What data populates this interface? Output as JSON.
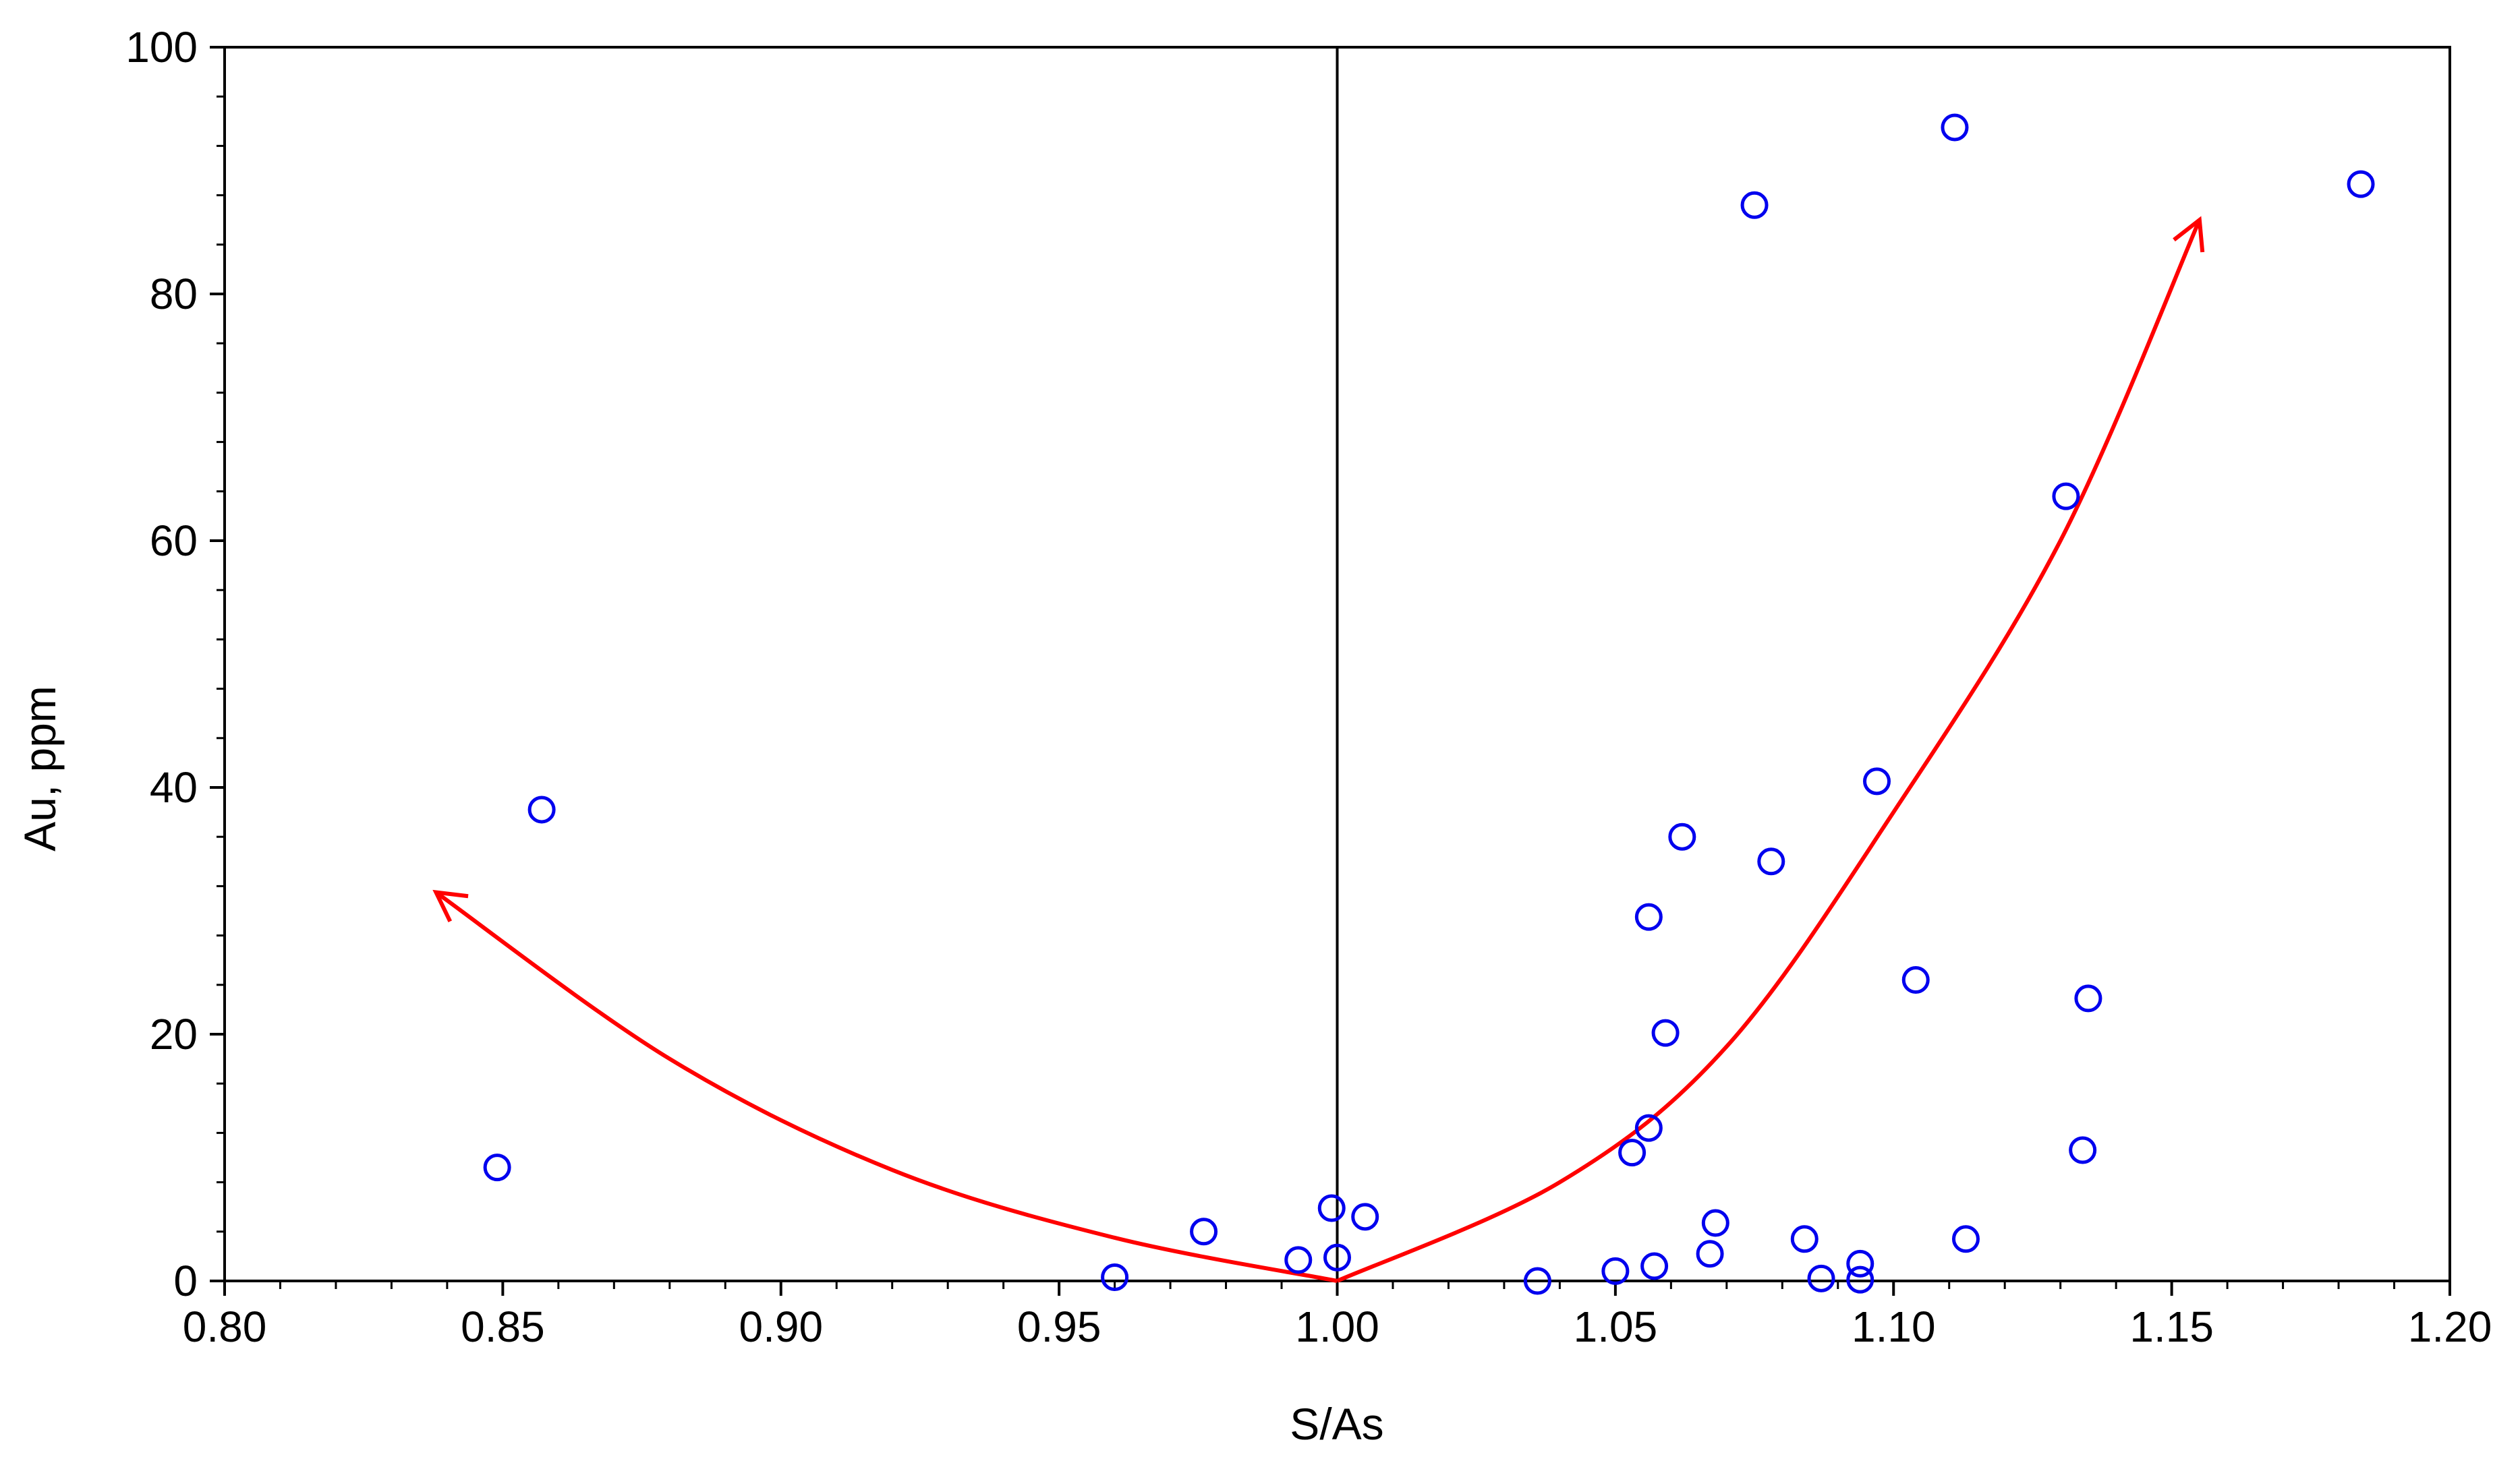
{
  "chart_data": {
    "type": "scatter",
    "xlabel": "S/As",
    "ylabel": "Au, ppm",
    "xlim": [
      0.8,
      1.2
    ],
    "ylim": [
      0,
      100
    ],
    "x_ticks": [
      "0.80",
      "0.85",
      "0.90",
      "0.95",
      "1.00",
      "1.05",
      "1.10",
      "1.15",
      "1.20"
    ],
    "y_ticks": [
      "0",
      "20",
      "40",
      "60",
      "80",
      "100"
    ],
    "x_tick_values": [
      0.8,
      0.85,
      0.9,
      0.95,
      1.0,
      1.05,
      1.1,
      1.15,
      1.2
    ],
    "y_tick_values": [
      0,
      20,
      40,
      60,
      80,
      100
    ],
    "grid": false,
    "reference_line": {
      "x": 1.0
    },
    "series": [
      {
        "marker": "open-circle",
        "color": "#0000ee",
        "points": [
          {
            "x": 0.849,
            "y": 9.2
          },
          {
            "x": 0.857,
            "y": 38.2
          },
          {
            "x": 0.96,
            "y": 0.3
          },
          {
            "x": 0.976,
            "y": 4.0
          },
          {
            "x": 0.993,
            "y": 1.7
          },
          {
            "x": 0.999,
            "y": 5.9
          },
          {
            "x": 1.0,
            "y": 1.9
          },
          {
            "x": 1.005,
            "y": 5.2
          },
          {
            "x": 1.036,
            "y": 0.0
          },
          {
            "x": 1.05,
            "y": 0.8
          },
          {
            "x": 1.053,
            "y": 10.4
          },
          {
            "x": 1.056,
            "y": 12.4
          },
          {
            "x": 1.056,
            "y": 29.5
          },
          {
            "x": 1.057,
            "y": 1.2
          },
          {
            "x": 1.059,
            "y": 20.1
          },
          {
            "x": 1.062,
            "y": 36.0
          },
          {
            "x": 1.067,
            "y": 2.2
          },
          {
            "x": 1.068,
            "y": 4.7
          },
          {
            "x": 1.075,
            "y": 87.2
          },
          {
            "x": 1.078,
            "y": 34.0
          },
          {
            "x": 1.084,
            "y": 3.4
          },
          {
            "x": 1.087,
            "y": 0.2
          },
          {
            "x": 1.094,
            "y": 1.4
          },
          {
            "x": 1.094,
            "y": 0.1
          },
          {
            "x": 1.097,
            "y": 40.5
          },
          {
            "x": 1.104,
            "y": 24.4
          },
          {
            "x": 1.111,
            "y": 93.5
          },
          {
            "x": 1.113,
            "y": 3.4
          },
          {
            "x": 1.131,
            "y": 63.6
          },
          {
            "x": 1.134,
            "y": 10.6
          },
          {
            "x": 1.135,
            "y": 22.9
          },
          {
            "x": 1.184,
            "y": 88.9
          }
        ]
      }
    ],
    "annotations": [
      {
        "type": "curve-arrow",
        "color": "#ff0000",
        "path": [
          {
            "x": 1.0,
            "y": 0.0
          },
          {
            "x": 0.96,
            "y": 3.5
          },
          {
            "x": 0.92,
            "y": 9.0
          },
          {
            "x": 0.88,
            "y": 18.0
          },
          {
            "x": 0.838,
            "y": 31.5
          }
        ]
      },
      {
        "type": "curve-arrow",
        "color": "#ff0000",
        "path": [
          {
            "x": 1.0,
            "y": 0.0
          },
          {
            "x": 1.04,
            "y": 8.0
          },
          {
            "x": 1.07,
            "y": 19.0
          },
          {
            "x": 1.1,
            "y": 38.0
          },
          {
            "x": 1.13,
            "y": 60.0
          },
          {
            "x": 1.155,
            "y": 86.0
          }
        ]
      }
    ]
  }
}
